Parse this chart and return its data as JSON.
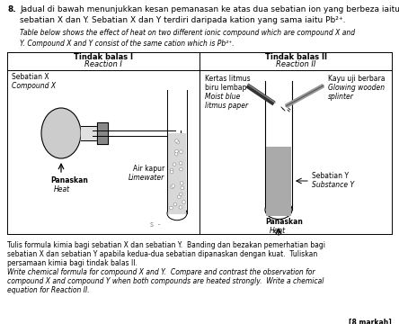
{
  "bg_color": "#ffffff",
  "question_num": "8.",
  "malay_text1": "Jadual di bawah menunjukkan kesan pemanasan ke atas dua sebatian ion yang berbeza iaitu",
  "malay_text2": "sebatian X dan Y. Sebatian X dan Y terdiri daripada kation yang sama iaitu Pb²⁺.",
  "eng_text1": "Table below shows the effect of heat on two different ionic compound which are compound X and",
  "eng_text2": "Y. Compound X and Y consist of the same cation which is Pb²⁺.",
  "col1_header_malay": "Tindak balas I",
  "col1_header_eng": "Reaction I",
  "col2_header_malay": "Tindak balas II",
  "col2_header_eng": "Reaction II",
  "cell1_label_malay": "Sebatian X",
  "cell1_label_eng": "Compound X",
  "cell1_heat_malay": "Panaskan",
  "cell1_heat_eng": "Heat",
  "cell1_limewater_malay": "Air kapur",
  "cell1_limewater_eng": "Limewater",
  "cell2_litmus_malay": "Kertas litmus",
  "cell2_litmus_malay2": "biru lembap",
  "cell2_litmus_eng": "Moist blue",
  "cell2_litmus_eng2": "litmus paper",
  "cell2_wood_malay": "Kayu uji berbara",
  "cell2_wood_eng": "Glowing wooden",
  "cell2_wood_eng2": "splinter",
  "cell2_substance_malay": "Sebatian Y",
  "cell2_substance_eng": "Substance Y",
  "cell2_heat_malay": "Panaskan",
  "cell2_heat_eng": "Heat",
  "bottom_malay1": "Tulis formula kimia bagi sebatian X dan sebatian Y.  Banding dan bezakan pemerhatian bagi",
  "bottom_malay2": "sebatian X dan sebatian Y apabila kedua-dua sebatian dipanaskan dengan kuat.  Tuliskan",
  "bottom_malay3": "persamaan kimia bagi tindak balas II.",
  "bottom_eng1": "Write chemical formula for compound X and Y.  Compare and contrast the observation for",
  "bottom_eng2": "compound X and compound Y when both compounds are heated strongly.  Write a chemical",
  "bottom_eng3": "equation for Reaction II.",
  "marks": "[8 markah]"
}
